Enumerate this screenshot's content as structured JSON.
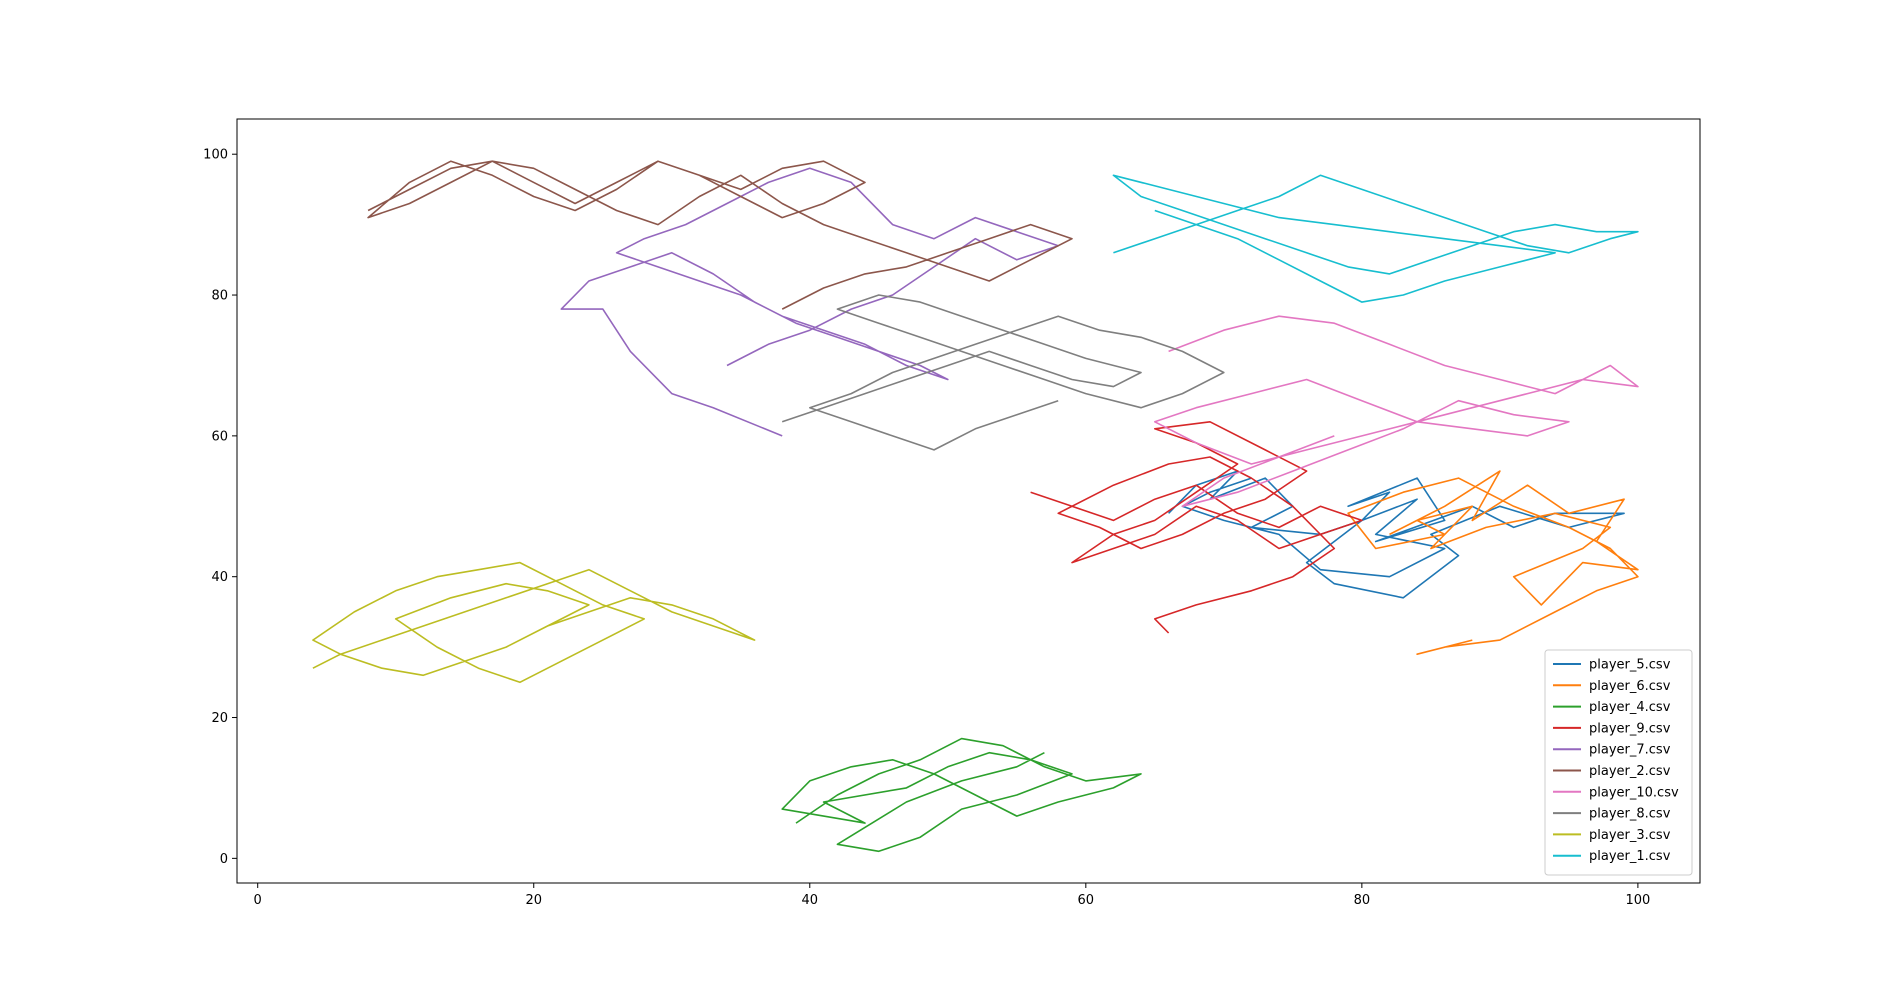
{
  "chart_data": {
    "type": "line",
    "title": "",
    "xlabel": "",
    "ylabel": "",
    "xlim": [
      -1.5,
      104.5
    ],
    "ylim": [
      -3.5,
      105
    ],
    "x_ticks": [
      "0",
      "20",
      "40",
      "60",
      "80",
      "100"
    ],
    "y_ticks": [
      "0",
      "20",
      "40",
      "60",
      "80",
      "100"
    ],
    "x_tick_values": [
      0,
      20,
      40,
      60,
      80,
      100
    ],
    "y_tick_values": [
      0,
      20,
      40,
      60,
      80,
      100
    ],
    "grid": false,
    "legend_position": "lower-right",
    "series": [
      {
        "name": "player_5.csv",
        "color": "#1f77b4",
        "x": [
          66,
          68,
          71,
          69,
          73,
          75,
          72,
          77,
          80,
          82,
          79,
          84,
          86,
          81,
          88,
          91,
          94,
          99,
          95,
          90,
          85,
          87,
          83,
          78,
          76,
          80,
          84,
          81,
          86,
          82,
          77,
          74,
          70,
          67,
          69,
          72
        ],
        "y": [
          49,
          53,
          55,
          51,
          54,
          50,
          47,
          46,
          48,
          52,
          50,
          54,
          48,
          45,
          50,
          47,
          49,
          49,
          47,
          50,
          46,
          43,
          37,
          39,
          42,
          48,
          51,
          46,
          44,
          40,
          41,
          46,
          48,
          50,
          52,
          54
        ]
      },
      {
        "name": "player_6.csv",
        "color": "#ff7f0e",
        "x": [
          82,
          86,
          90,
          88,
          92,
          95,
          99,
          97,
          100,
          96,
          93,
          91,
          96,
          98,
          94,
          89,
          85,
          88,
          84,
          86,
          81,
          79,
          83,
          87,
          91,
          95,
          98,
          100,
          97,
          94,
          90,
          86,
          84,
          88
        ],
        "y": [
          46,
          50,
          55,
          48,
          53,
          49,
          51,
          45,
          41,
          42,
          36,
          40,
          44,
          47,
          49,
          47,
          44,
          50,
          48,
          46,
          44,
          49,
          52,
          54,
          50,
          47,
          44,
          40,
          38,
          35,
          31,
          30,
          29,
          31
        ]
      },
      {
        "name": "player_4.csv",
        "color": "#2ca02c",
        "x": [
          39,
          42,
          45,
          48,
          51,
          54,
          57,
          60,
          64,
          62,
          58,
          55,
          52,
          49,
          46,
          43,
          40,
          38,
          44,
          41,
          47,
          50,
          53,
          56,
          59,
          55,
          51,
          48,
          45,
          42,
          47,
          51,
          55,
          57
        ],
        "y": [
          5,
          9,
          12,
          14,
          17,
          16,
          13,
          11,
          12,
          10,
          8,
          6,
          9,
          12,
          14,
          13,
          11,
          7,
          5,
          8,
          10,
          13,
          15,
          14,
          12,
          9,
          7,
          3,
          1,
          2,
          8,
          11,
          13,
          15
        ]
      },
      {
        "name": "player_9.csv",
        "color": "#d62728",
        "x": [
          56,
          59,
          62,
          65,
          68,
          71,
          74,
          77,
          80,
          77,
          74,
          71,
          68,
          65,
          62,
          59,
          62,
          65,
          68,
          71,
          68,
          65,
          69,
          73,
          76,
          73,
          70,
          67,
          64,
          61,
          58,
          62,
          66,
          69,
          72,
          75,
          78,
          75,
          72,
          68,
          65,
          66
        ],
        "y": [
          52,
          50,
          48,
          51,
          53,
          49,
          47,
          50,
          48,
          46,
          44,
          48,
          50,
          46,
          44,
          42,
          46,
          48,
          52,
          56,
          59,
          61,
          62,
          58,
          55,
          51,
          49,
          46,
          44,
          47,
          49,
          53,
          56,
          57,
          54,
          50,
          44,
          40,
          38,
          36,
          34,
          32
        ]
      },
      {
        "name": "player_7.csv",
        "color": "#9467bd",
        "x": [
          38,
          33,
          30,
          27,
          25,
          22,
          24,
          27,
          30,
          33,
          36,
          39,
          42,
          45,
          48,
          50,
          47,
          44,
          41,
          38,
          35,
          32,
          29,
          26,
          28,
          31,
          34,
          37,
          40,
          43,
          46,
          49,
          52,
          55,
          58,
          55,
          52,
          49,
          46,
          43,
          40,
          37,
          34
        ],
        "y": [
          60,
          64,
          66,
          72,
          78,
          78,
          82,
          84,
          86,
          83,
          79,
          76,
          74,
          72,
          70,
          68,
          70,
          73,
          75,
          77,
          80,
          82,
          84,
          86,
          88,
          90,
          93,
          96,
          98,
          96,
          90,
          88,
          91,
          89,
          87,
          85,
          88,
          84,
          80,
          78,
          75,
          73,
          70
        ]
      },
      {
        "name": "player_2.csv",
        "color": "#8c564b",
        "x": [
          8,
          11,
          14,
          17,
          20,
          23,
          26,
          29,
          32,
          35,
          38,
          41,
          44,
          41,
          38,
          35,
          32,
          29,
          26,
          23,
          20,
          17,
          14,
          11,
          8,
          11,
          14,
          17,
          20,
          23,
          26,
          29,
          32,
          35,
          38,
          41,
          44,
          47,
          50,
          53,
          56,
          59,
          56,
          53,
          50,
          47,
          44,
          41,
          38
        ],
        "y": [
          92,
          95,
          98,
          99,
          96,
          93,
          96,
          99,
          97,
          95,
          98,
          99,
          96,
          93,
          91,
          94,
          97,
          99,
          95,
          92,
          94,
          97,
          99,
          96,
          91,
          93,
          96,
          99,
          98,
          95,
          92,
          90,
          94,
          97,
          93,
          90,
          88,
          86,
          84,
          82,
          85,
          88,
          90,
          88,
          86,
          84,
          83,
          81,
          78
        ]
      },
      {
        "name": "player_10.csv",
        "color": "#e377c2",
        "x": [
          66,
          70,
          74,
          78,
          82,
          86,
          90,
          94,
          98,
          100,
          96,
          92,
          88,
          84,
          80,
          76,
          72,
          68,
          65,
          68,
          72,
          76,
          80,
          84,
          88,
          92,
          95,
          91,
          87,
          83,
          79,
          75,
          71,
          67,
          70,
          74,
          78
        ],
        "y": [
          72,
          75,
          77,
          76,
          73,
          70,
          68,
          66,
          70,
          67,
          68,
          66,
          64,
          62,
          60,
          58,
          56,
          59,
          62,
          64,
          66,
          68,
          65,
          62,
          61,
          60,
          62,
          63,
          65,
          61,
          58,
          55,
          52,
          50,
          54,
          57,
          60
        ]
      },
      {
        "name": "player_8.csv",
        "color": "#7f7f7f",
        "x": [
          38,
          41,
          44,
          47,
          50,
          53,
          56,
          59,
          62,
          64,
          60,
          57,
          54,
          51,
          48,
          45,
          42,
          45,
          48,
          51,
          54,
          57,
          60,
          64,
          67,
          70,
          67,
          64,
          61,
          58,
          55,
          52,
          49,
          46,
          43,
          40,
          43,
          46,
          49,
          52,
          55,
          58
        ],
        "y": [
          62,
          64,
          66,
          68,
          70,
          72,
          70,
          68,
          67,
          69,
          71,
          73,
          75,
          77,
          79,
          80,
          78,
          76,
          74,
          72,
          70,
          68,
          66,
          64,
          66,
          69,
          72,
          74,
          75,
          77,
          75,
          73,
          71,
          69,
          66,
          64,
          62,
          60,
          58,
          61,
          63,
          65
        ]
      },
      {
        "name": "player_3.csv",
        "color": "#bcbd22",
        "x": [
          4,
          6,
          9,
          12,
          15,
          18,
          21,
          24,
          27,
          30,
          33,
          36,
          33,
          30,
          27,
          24,
          21,
          18,
          15,
          12,
          9,
          6,
          4,
          7,
          10,
          13,
          16,
          19,
          22,
          25,
          28,
          25,
          22,
          19,
          16,
          13,
          10,
          14,
          18,
          21,
          24,
          21
        ],
        "y": [
          27,
          29,
          31,
          33,
          35,
          37,
          39,
          41,
          38,
          35,
          33,
          31,
          34,
          36,
          37,
          35,
          33,
          30,
          28,
          26,
          27,
          29,
          31,
          35,
          38,
          40,
          41,
          42,
          39,
          36,
          34,
          31,
          28,
          25,
          27,
          30,
          34,
          37,
          39,
          38,
          36,
          33
        ]
      },
      {
        "name": "player_1.csv",
        "color": "#17becf",
        "x": [
          62,
          65,
          68,
          71,
          74,
          77,
          80,
          83,
          86,
          89,
          92,
          95,
          98,
          100,
          97,
          94,
          91,
          88,
          85,
          82,
          79,
          76,
          73,
          70,
          67,
          64,
          62,
          66,
          70,
          74,
          78,
          82,
          86,
          90,
          94,
          90,
          86,
          83,
          80,
          77,
          74,
          71,
          68,
          65
        ],
        "y": [
          86,
          88,
          90,
          92,
          94,
          97,
          95,
          93,
          91,
          89,
          87,
          86,
          88,
          89,
          89,
          90,
          89,
          87,
          85,
          83,
          84,
          86,
          88,
          90,
          92,
          94,
          97,
          95,
          93,
          91,
          90,
          89,
          88,
          87,
          86,
          84,
          82,
          80,
          79,
          82,
          85,
          88,
          90,
          92
        ]
      }
    ]
  }
}
